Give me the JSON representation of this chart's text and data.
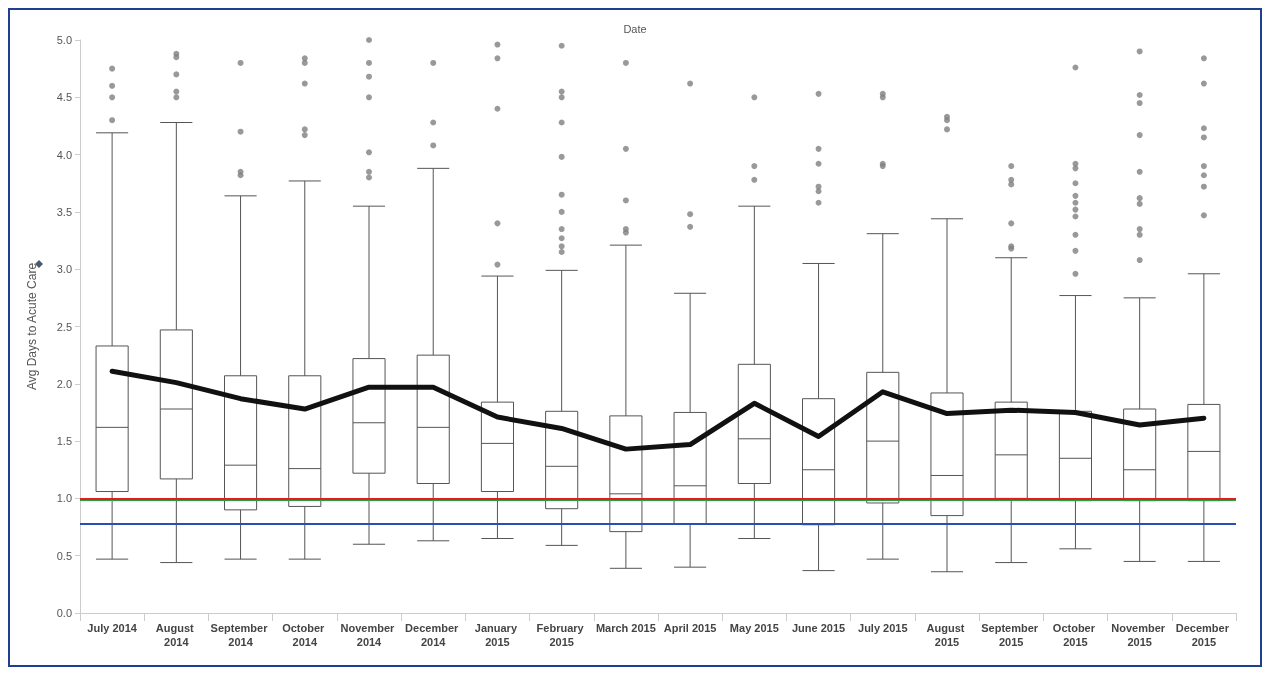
{
  "chart_data": {
    "type": "box",
    "xlabel": "Date",
    "ylabel": "Avg Days to Acute Care",
    "categories": [
      "July 2014",
      "August 2014",
      "September 2014",
      "October 2014",
      "November 2014",
      "December 2014",
      "January 2015",
      "February 2015",
      "March 2015",
      "April 2015",
      "May 2015",
      "June 2015",
      "July 2015",
      "August 2015",
      "September 2015",
      "October 2015",
      "November 2015",
      "December 2015"
    ],
    "ylim": [
      0,
      5
    ],
    "yticks": [
      {
        "value": 0,
        "label": "0.0"
      },
      0.5,
      {
        "value": 1,
        "label": "1.0"
      },
      1.5,
      {
        "value": 2,
        "label": "2.0"
      },
      2.5,
      {
        "value": 3,
        "label": "3.0"
      },
      3.5,
      {
        "value": 4,
        "label": "4.0"
      },
      4.5,
      {
        "value": 5,
        "label": "5.0"
      }
    ],
    "series": [
      {
        "type": "box",
        "color": "#555555",
        "boxes": [
          {
            "low": 0.47,
            "q1": 1.06,
            "median": 1.62,
            "q3": 2.33,
            "high": 4.19,
            "outliers": [
              4.3,
              4.5,
              4.6,
              4.75
            ]
          },
          {
            "low": 0.44,
            "q1": 1.17,
            "median": 1.78,
            "q3": 2.47,
            "high": 4.28,
            "outliers": [
              4.5,
              4.55,
              4.7,
              4.85,
              4.88
            ]
          },
          {
            "low": 0.47,
            "q1": 0.9,
            "median": 1.29,
            "q3": 2.07,
            "high": 3.64,
            "outliers": [
              3.82,
              3.85,
              4.2,
              4.8
            ]
          },
          {
            "low": 0.47,
            "q1": 0.93,
            "median": 1.26,
            "q3": 2.07,
            "high": 3.77,
            "outliers": [
              4.17,
              4.22,
              4.62,
              4.8,
              4.84
            ]
          },
          {
            "low": 0.6,
            "q1": 1.22,
            "median": 1.66,
            "q3": 2.22,
            "high": 3.55,
            "outliers": [
              3.8,
              3.85,
              4.02,
              4.5,
              4.68,
              4.8,
              5.0
            ]
          },
          {
            "low": 0.63,
            "q1": 1.13,
            "median": 1.62,
            "q3": 2.25,
            "high": 3.88,
            "outliers": [
              4.08,
              4.28,
              4.8
            ]
          },
          {
            "low": 0.65,
            "q1": 1.06,
            "median": 1.48,
            "q3": 1.84,
            "high": 2.94,
            "outliers": [
              3.04,
              3.4,
              4.4,
              4.84,
              4.96
            ]
          },
          {
            "low": 0.59,
            "q1": 0.91,
            "median": 1.28,
            "q3": 1.76,
            "high": 2.99,
            "outliers": [
              3.15,
              3.2,
              3.27,
              3.35,
              3.5,
              3.65,
              3.98,
              4.28,
              4.5,
              4.55,
              4.95
            ]
          },
          {
            "low": 0.39,
            "q1": 0.71,
            "median": 1.04,
            "q3": 1.72,
            "high": 3.21,
            "outliers": [
              3.32,
              3.35,
              3.6,
              4.05,
              4.8
            ]
          },
          {
            "low": 0.4,
            "q1": 0.78,
            "median": 1.11,
            "q3": 1.75,
            "high": 2.79,
            "outliers": [
              3.37,
              3.48,
              4.62
            ]
          },
          {
            "low": 0.65,
            "q1": 1.13,
            "median": 1.52,
            "q3": 2.17,
            "high": 3.55,
            "outliers": [
              3.78,
              3.9,
              4.5
            ]
          },
          {
            "low": 0.37,
            "q1": 0.77,
            "median": 1.25,
            "q3": 1.87,
            "high": 3.05,
            "outliers": [
              3.58,
              3.68,
              3.72,
              3.92,
              4.05,
              4.53
            ]
          },
          {
            "low": 0.47,
            "q1": 0.96,
            "median": 1.5,
            "q3": 2.1,
            "high": 3.31,
            "outliers": [
              3.9,
              3.92,
              4.5,
              4.53
            ]
          },
          {
            "low": 0.36,
            "q1": 0.85,
            "median": 1.2,
            "q3": 1.92,
            "high": 3.44,
            "outliers": [
              4.22,
              4.3,
              4.33
            ]
          },
          {
            "low": 0.44,
            "q1": 1.0,
            "median": 1.38,
            "q3": 1.84,
            "high": 3.1,
            "outliers": [
              3.18,
              3.2,
              3.4,
              3.74,
              3.78,
              3.9
            ]
          },
          {
            "low": 0.56,
            "q1": 0.98,
            "median": 1.35,
            "q3": 1.76,
            "high": 2.77,
            "outliers": [
              2.96,
              3.16,
              3.3,
              3.46,
              3.52,
              3.58,
              3.64,
              3.75,
              3.88,
              3.92,
              4.76
            ]
          },
          {
            "low": 0.45,
            "q1": 0.98,
            "median": 1.25,
            "q3": 1.78,
            "high": 2.75,
            "outliers": [
              3.08,
              3.3,
              3.35,
              3.57,
              3.62,
              3.85,
              4.17,
              4.45,
              4.52,
              4.9
            ]
          },
          {
            "low": 0.45,
            "q1": 0.98,
            "median": 1.41,
            "q3": 1.82,
            "high": 2.96,
            "outliers": [
              3.47,
              3.72,
              3.82,
              3.9,
              4.15,
              4.23,
              4.62,
              4.84
            ]
          }
        ]
      },
      {
        "type": "line",
        "color": "#111111",
        "values": [
          2.11,
          2.01,
          1.87,
          1.78,
          1.97,
          1.97,
          1.71,
          1.61,
          1.43,
          1.47,
          1.83,
          1.54,
          1.93,
          1.74,
          1.77,
          1.75,
          1.64,
          1.7
        ]
      }
    ],
    "ref_lines": [
      {
        "axis": "y",
        "value": 0.99,
        "color": "#22a04a"
      },
      {
        "axis": "y",
        "value": 1.0,
        "color": "#e81a1a"
      },
      {
        "axis": "y",
        "value": 0.78,
        "color": "#2850b0"
      }
    ]
  }
}
